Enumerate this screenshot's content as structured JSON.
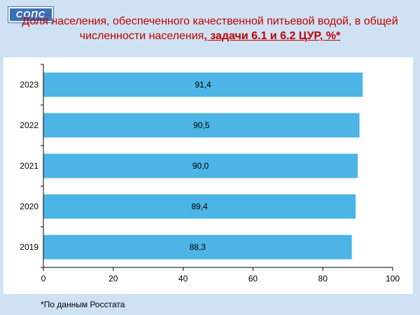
{
  "logo_text": "СОПС",
  "title_part1": "Доля населения, обеспеченного качественной питьевой водой, в общей численности населения",
  "title_part2": ", задачи 6.1 и 6.2 ЦУР, %*",
  "footnote": "*По данным Росстата",
  "bar_color": "#4db4e6",
  "title_color": "#c00000",
  "chart_data": {
    "type": "bar",
    "orientation": "horizontal",
    "categories": [
      "2023",
      "2022",
      "2021",
      "2020",
      "2019"
    ],
    "values": [
      91.4,
      90.5,
      90.0,
      89.4,
      88.3
    ],
    "value_labels": [
      "91,4",
      "90,5",
      "90,0",
      "89,4",
      "88,3"
    ],
    "xlim": [
      0,
      100
    ],
    "xticks": [
      0,
      20,
      40,
      60,
      80,
      100
    ],
    "grid": false,
    "legend": "none",
    "title": ""
  }
}
